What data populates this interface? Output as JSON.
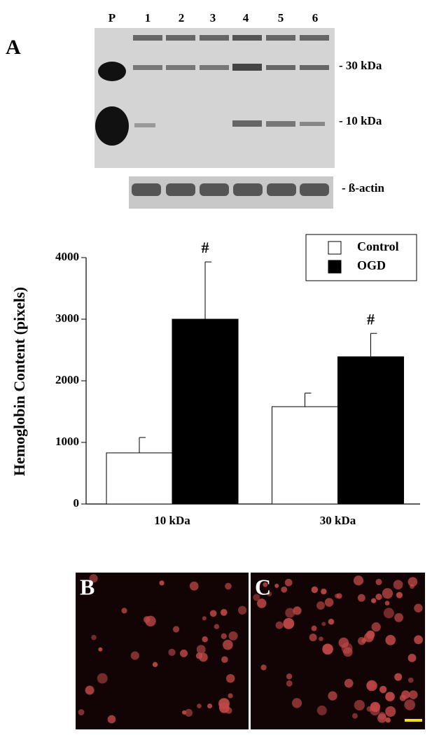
{
  "blot": {
    "panel_label": "A",
    "lanes": [
      "P",
      "1",
      "2",
      "3",
      "4",
      "5",
      "6"
    ],
    "markers": [
      "- 30 kDa",
      "- 10 kDa"
    ],
    "loading_label": "- ß-actin"
  },
  "chart_data": {
    "type": "bar",
    "y_label": "Hemoglobin Content (pixels)",
    "categories": [
      "10 kDa",
      "30 kDa"
    ],
    "series": [
      {
        "name": "Control",
        "color": "#ffffff",
        "values": [
          830,
          1580
        ],
        "errors": [
          250,
          220
        ]
      },
      {
        "name": "OGD",
        "color": "#000000",
        "values": [
          3000,
          2390
        ],
        "errors": [
          930,
          380
        ]
      }
    ],
    "annotations": [
      "#",
      "#"
    ],
    "ylim": [
      0,
      4000
    ],
    "yticks": [
      0,
      1000,
      2000,
      3000,
      4000
    ],
    "grid": false,
    "legend": "upper right"
  },
  "micrographs": {
    "labels": [
      "B",
      "C"
    ]
  }
}
